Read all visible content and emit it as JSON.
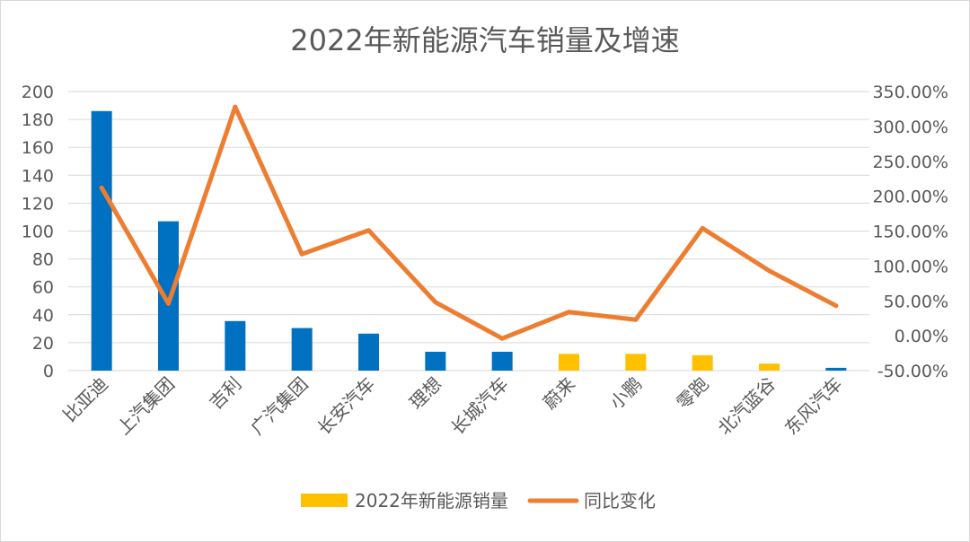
{
  "chart_data": {
    "type": "bar",
    "title": "2022年新能源汽车销量及增速",
    "categories": [
      "比亚迪",
      "上汽集团",
      "吉利",
      "广汽集团",
      "长安汽车",
      "理想",
      "长城汽车",
      "蔚来",
      "小鹏",
      "零跑",
      "北汽蓝谷",
      "东风汽车"
    ],
    "series": [
      {
        "name": "2022年新能源销量",
        "type": "bar",
        "axis": "left",
        "values": [
          186,
          107,
          35.5,
          30.5,
          26.5,
          13.5,
          13.5,
          12,
          12,
          11,
          5,
          2
        ],
        "colors": [
          "#0070C0",
          "#0070C0",
          "#0070C0",
          "#0070C0",
          "#0070C0",
          "#0070C0",
          "#0070C0",
          "#FFC000",
          "#FFC000",
          "#FFC000",
          "#FFC000",
          "#0070C0"
        ]
      },
      {
        "name": "同比变化",
        "type": "line",
        "axis": "right",
        "values": [
          2.12,
          0.46,
          3.28,
          1.17,
          1.51,
          0.48,
          -0.04,
          0.34,
          0.23,
          1.54,
          0.93,
          0.43
        ],
        "color": "#ED7D31"
      }
    ],
    "y_left": {
      "min": 0,
      "max": 200,
      "step": 20,
      "ticks": [
        "0",
        "20",
        "40",
        "60",
        "80",
        "100",
        "120",
        "140",
        "160",
        "180",
        "200"
      ]
    },
    "y_right": {
      "min": -0.5,
      "max": 3.5,
      "step": 0.5,
      "ticks": [
        "-50.00%",
        "0.00%",
        "50.00%",
        "100.00%",
        "150.00%",
        "200.00%",
        "250.00%",
        "300.00%",
        "350.00%"
      ]
    },
    "grid": true,
    "legend": "bottom",
    "legend_items": [
      {
        "label": "2022年新能源销量",
        "color": "#FFC000",
        "shape": "rect"
      },
      {
        "label": "同比变化",
        "color": "#ED7D31",
        "shape": "line"
      }
    ]
  }
}
